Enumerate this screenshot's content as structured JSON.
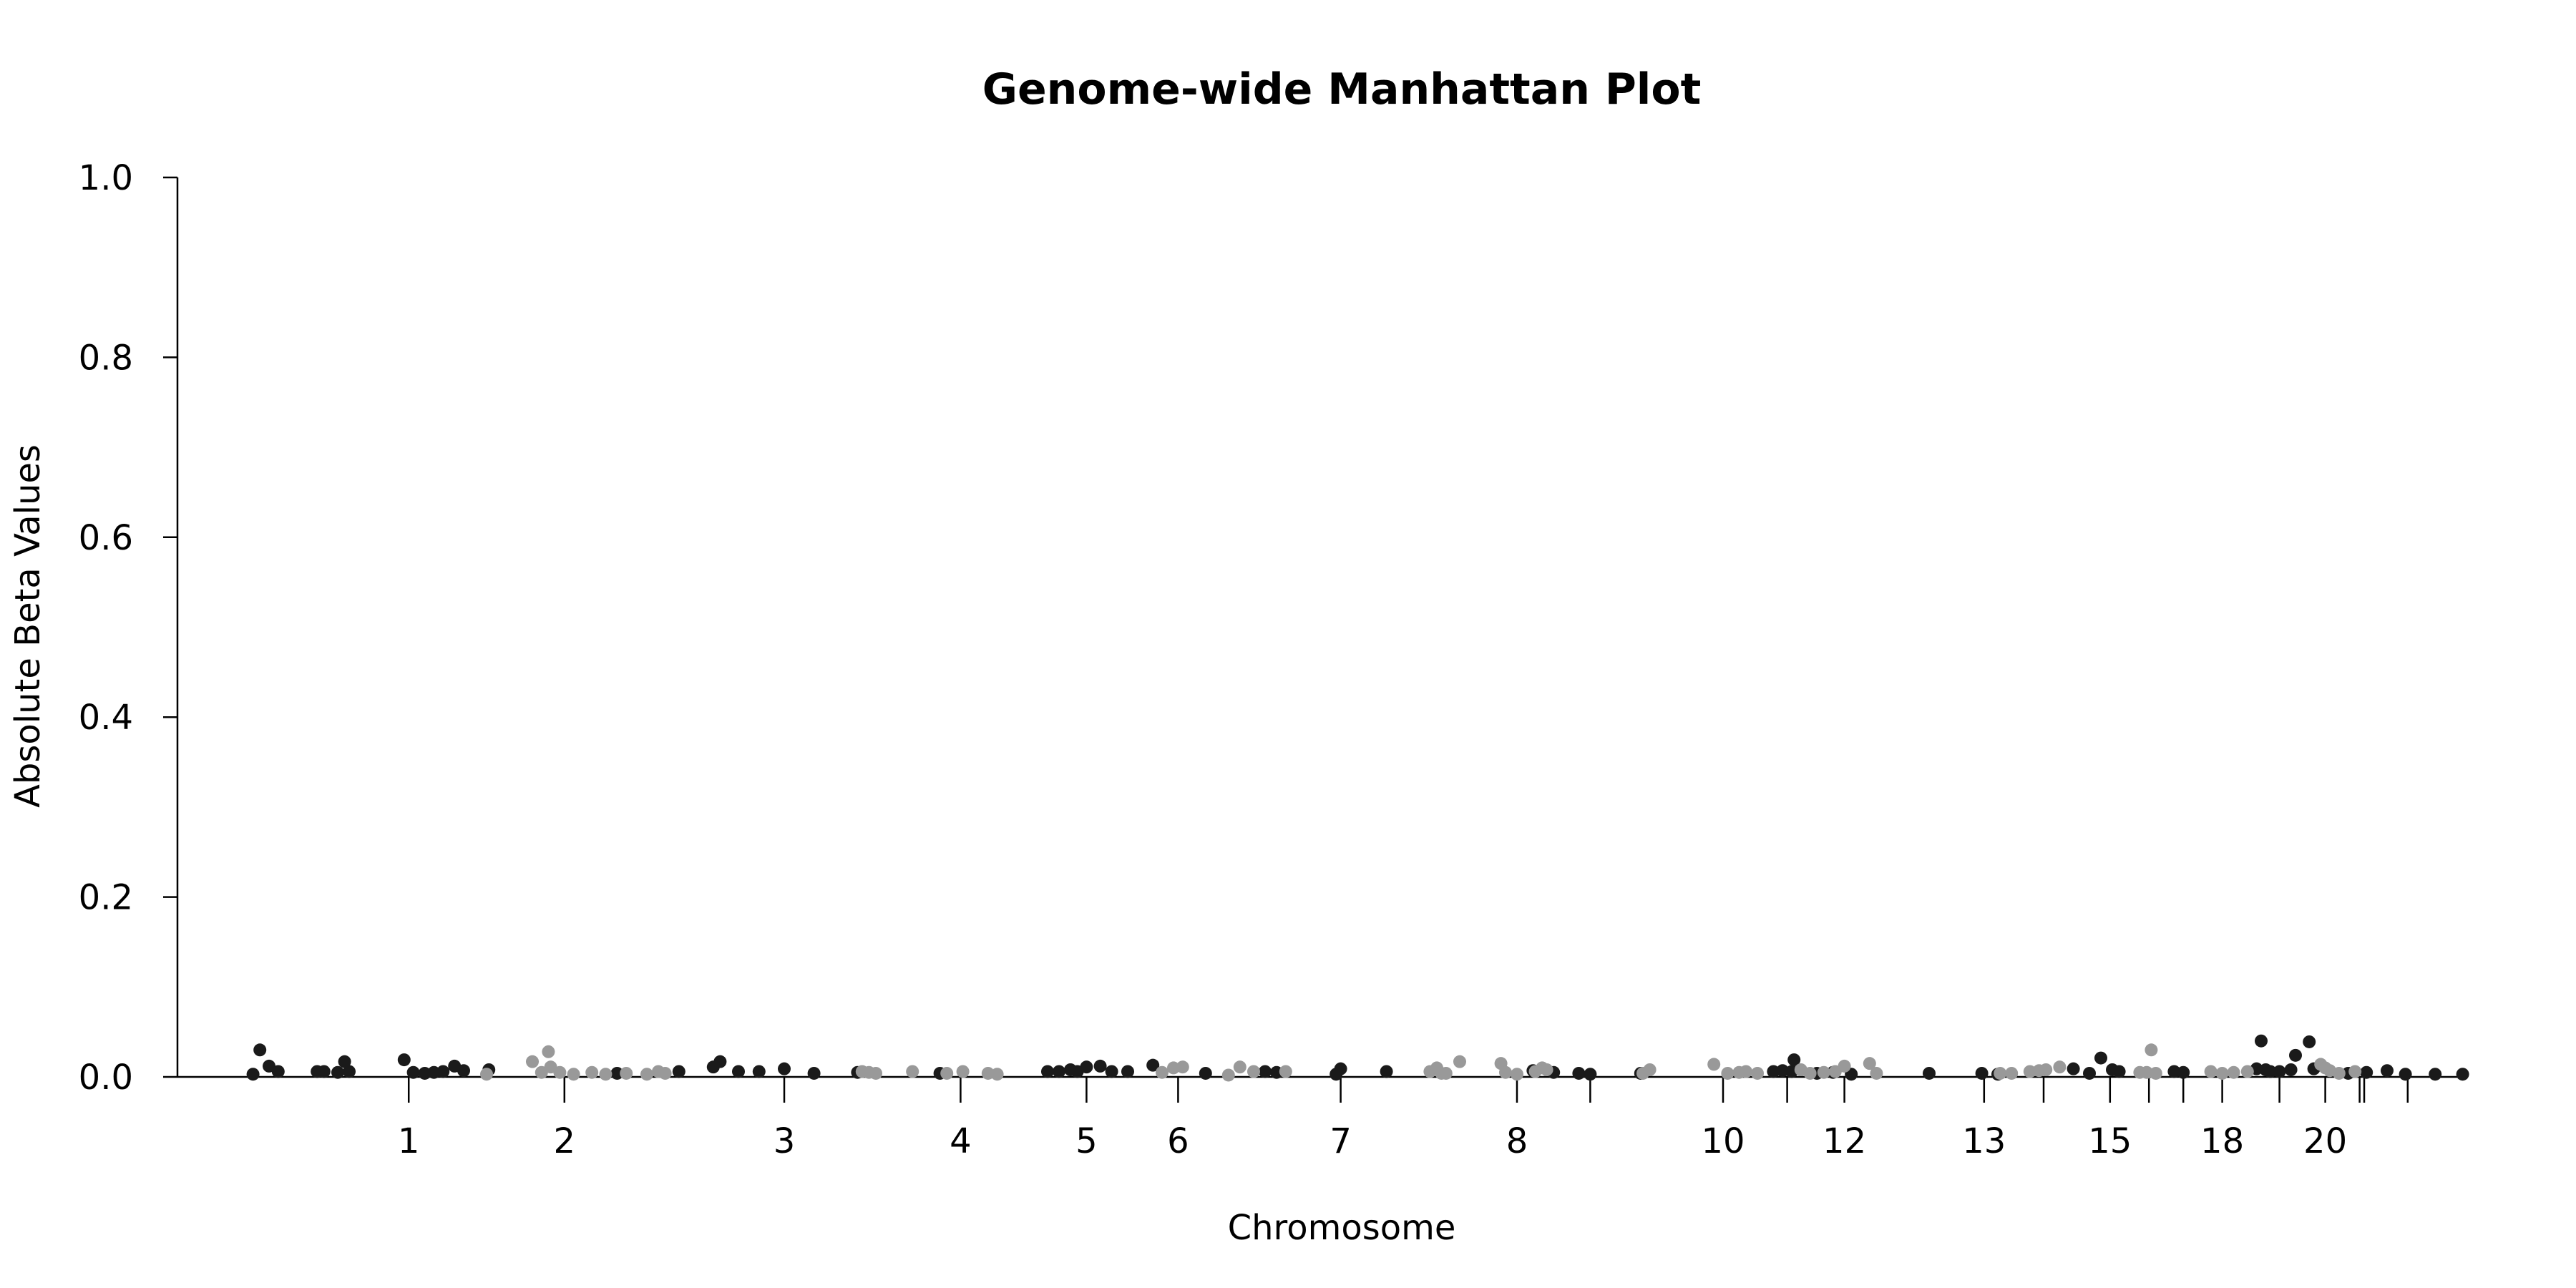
{
  "chart_data": {
    "type": "scatter",
    "title": "Genome-wide Manhattan Plot",
    "xlabel": "Chromosome",
    "ylabel": "Absolute Beta Values",
    "ylim": [
      0,
      1.0
    ],
    "yticks": [
      0.0,
      0.2,
      0.4,
      0.6,
      0.8,
      1.0
    ],
    "ytick_labels": [
      "0.0",
      "0.2",
      "0.4",
      "0.6",
      "0.8",
      "1.0"
    ],
    "xlim": [
      0,
      100
    ],
    "chromosome_ticks": [
      {
        "pos": 10.1,
        "label": "1"
      },
      {
        "pos": 16.9,
        "label": "2"
      },
      {
        "pos": 26.5,
        "label": "3"
      },
      {
        "pos": 34.2,
        "label": "4"
      },
      {
        "pos": 39.7,
        "label": "5"
      },
      {
        "pos": 43.7,
        "label": "6"
      },
      {
        "pos": 50.8,
        "label": "7"
      },
      {
        "pos": 58.5,
        "label": "8"
      },
      {
        "pos": 61.7,
        "label": ""
      },
      {
        "pos": 67.5,
        "label": "10"
      },
      {
        "pos": 70.3,
        "label": ""
      },
      {
        "pos": 72.8,
        "label": "12"
      },
      {
        "pos": 78.9,
        "label": "13"
      },
      {
        "pos": 81.5,
        "label": ""
      },
      {
        "pos": 84.4,
        "label": "15"
      },
      {
        "pos": 86.1,
        "label": ""
      },
      {
        "pos": 87.6,
        "label": ""
      },
      {
        "pos": 89.3,
        "label": "18"
      },
      {
        "pos": 91.8,
        "label": ""
      },
      {
        "pos": 93.8,
        "label": "20"
      },
      {
        "pos": 95.3,
        "label": ""
      },
      {
        "pos": 95.5,
        "label": ""
      },
      {
        "pos": 97.4,
        "label": ""
      }
    ],
    "series": [
      {
        "color": "#1a1a1a",
        "points": [
          [
            3.3,
            0.003
          ],
          [
            3.6,
            0.03
          ],
          [
            4.0,
            0.012
          ],
          [
            4.4,
            0.006
          ],
          [
            6.1,
            0.006
          ],
          [
            6.4,
            0.006
          ],
          [
            7.0,
            0.005
          ],
          [
            7.3,
            0.017
          ],
          [
            7.5,
            0.006
          ],
          [
            9.9,
            0.019
          ],
          [
            10.3,
            0.005
          ],
          [
            10.8,
            0.004
          ],
          [
            11.2,
            0.005
          ],
          [
            11.6,
            0.006
          ],
          [
            12.1,
            0.012
          ],
          [
            12.5,
            0.007
          ],
          [
            13.6,
            0.008
          ],
          [
            19.2,
            0.004
          ],
          [
            21.9,
            0.006
          ],
          [
            23.4,
            0.011
          ],
          [
            23.7,
            0.017
          ],
          [
            24.5,
            0.006
          ],
          [
            25.4,
            0.006
          ],
          [
            26.5,
            0.009
          ],
          [
            27.8,
            0.004
          ],
          [
            29.7,
            0.005
          ],
          [
            33.3,
            0.004
          ],
          [
            38.0,
            0.006
          ],
          [
            38.5,
            0.006
          ],
          [
            39.0,
            0.008
          ],
          [
            39.3,
            0.006
          ],
          [
            39.7,
            0.011
          ],
          [
            40.3,
            0.012
          ],
          [
            40.8,
            0.006
          ],
          [
            41.5,
            0.006
          ],
          [
            42.6,
            0.013
          ],
          [
            44.9,
            0.004
          ],
          [
            47.5,
            0.006
          ],
          [
            48.0,
            0.005
          ],
          [
            50.6,
            0.003
          ],
          [
            50.8,
            0.009
          ],
          [
            52.8,
            0.006
          ],
          [
            59.2,
            0.007
          ],
          [
            60.1,
            0.005
          ],
          [
            61.2,
            0.004
          ],
          [
            61.7,
            0.003
          ],
          [
            63.9,
            0.004
          ],
          [
            69.7,
            0.006
          ],
          [
            70.1,
            0.007
          ],
          [
            70.5,
            0.006
          ],
          [
            70.6,
            0.019
          ],
          [
            71.6,
            0.004
          ],
          [
            72.3,
            0.005
          ],
          [
            73.1,
            0.003
          ],
          [
            76.5,
            0.004
          ],
          [
            78.8,
            0.004
          ],
          [
            79.5,
            0.003
          ],
          [
            82.8,
            0.009
          ],
          [
            83.5,
            0.004
          ],
          [
            84.0,
            0.021
          ],
          [
            84.5,
            0.008
          ],
          [
            84.8,
            0.006
          ],
          [
            87.2,
            0.006
          ],
          [
            87.6,
            0.005
          ],
          [
            90.8,
            0.009
          ],
          [
            91.0,
            0.04
          ],
          [
            91.2,
            0.008
          ],
          [
            91.4,
            0.006
          ],
          [
            91.8,
            0.006
          ],
          [
            92.3,
            0.008
          ],
          [
            92.5,
            0.024
          ],
          [
            93.1,
            0.039
          ],
          [
            93.3,
            0.009
          ],
          [
            94.8,
            0.004
          ],
          [
            95.6,
            0.005
          ],
          [
            96.5,
            0.007
          ],
          [
            97.3,
            0.003
          ],
          [
            98.6,
            0.003
          ],
          [
            99.8,
            0.003
          ]
        ]
      },
      {
        "color": "#999999",
        "points": [
          [
            13.5,
            0.003
          ],
          [
            15.5,
            0.017
          ],
          [
            15.9,
            0.005
          ],
          [
            16.2,
            0.028
          ],
          [
            16.3,
            0.011
          ],
          [
            16.7,
            0.005
          ],
          [
            17.3,
            0.003
          ],
          [
            18.1,
            0.005
          ],
          [
            18.7,
            0.003
          ],
          [
            19.6,
            0.004
          ],
          [
            20.5,
            0.003
          ],
          [
            21.0,
            0.006
          ],
          [
            21.3,
            0.004
          ],
          [
            29.9,
            0.006
          ],
          [
            30.2,
            0.005
          ],
          [
            30.5,
            0.004
          ],
          [
            32.1,
            0.006
          ],
          [
            33.6,
            0.004
          ],
          [
            34.3,
            0.006
          ],
          [
            35.4,
            0.004
          ],
          [
            35.8,
            0.003
          ],
          [
            43.0,
            0.005
          ],
          [
            43.5,
            0.01
          ],
          [
            43.9,
            0.011
          ],
          [
            45.9,
            0.002
          ],
          [
            46.4,
            0.011
          ],
          [
            47.0,
            0.006
          ],
          [
            48.4,
            0.006
          ],
          [
            54.7,
            0.006
          ],
          [
            55.0,
            0.01
          ],
          [
            55.2,
            0.004
          ],
          [
            55.4,
            0.004
          ],
          [
            56.0,
            0.017
          ],
          [
            57.8,
            0.015
          ],
          [
            58.0,
            0.005
          ],
          [
            58.5,
            0.003
          ],
          [
            59.3,
            0.006
          ],
          [
            59.6,
            0.01
          ],
          [
            59.8,
            0.008
          ],
          [
            64.0,
            0.004
          ],
          [
            64.3,
            0.008
          ],
          [
            67.1,
            0.014
          ],
          [
            67.7,
            0.004
          ],
          [
            68.2,
            0.005
          ],
          [
            68.5,
            0.006
          ],
          [
            69.0,
            0.004
          ],
          [
            70.9,
            0.008
          ],
          [
            71.3,
            0.004
          ],
          [
            71.9,
            0.005
          ],
          [
            72.4,
            0.006
          ],
          [
            72.8,
            0.012
          ],
          [
            73.9,
            0.015
          ],
          [
            74.2,
            0.004
          ],
          [
            79.6,
            0.004
          ],
          [
            80.1,
            0.004
          ],
          [
            80.9,
            0.006
          ],
          [
            81.3,
            0.007
          ],
          [
            81.6,
            0.008
          ],
          [
            82.2,
            0.011
          ],
          [
            85.7,
            0.005
          ],
          [
            86.0,
            0.005
          ],
          [
            86.2,
            0.03
          ],
          [
            86.4,
            0.004
          ],
          [
            88.8,
            0.006
          ],
          [
            89.3,
            0.004
          ],
          [
            89.8,
            0.005
          ],
          [
            90.4,
            0.006
          ],
          [
            93.6,
            0.014
          ],
          [
            93.8,
            0.01
          ],
          [
            94.0,
            0.007
          ],
          [
            94.4,
            0.004
          ],
          [
            95.1,
            0.006
          ]
        ]
      }
    ],
    "grid": false,
    "legend": "none"
  }
}
